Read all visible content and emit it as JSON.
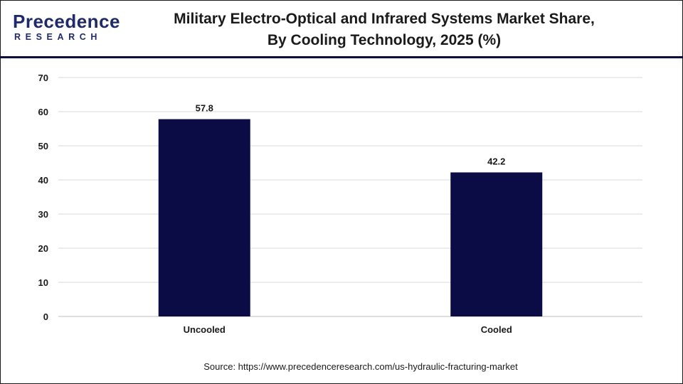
{
  "header": {
    "logo_main": "Precedence",
    "logo_sub": "RESEARCH",
    "title_line1": "Military Electro-Optical and Infrared Systems Market Share,",
    "title_line2": "By Cooling Technology, 2025 (%)"
  },
  "source": "Source: https://www.precedenceresearch.com/us-hydraulic-fracturing-market",
  "colors": {
    "bar": "#0b0b45",
    "grid": "#d9d9d9",
    "brand": "#1f2a6b"
  },
  "chart_data": {
    "type": "bar",
    "categories": [
      "Uncooled",
      "Cooled"
    ],
    "values": [
      57.8,
      42.2
    ],
    "data_labels": [
      "57.8",
      "42.2"
    ],
    "yticks": [
      0,
      10,
      20,
      30,
      40,
      50,
      60,
      70
    ],
    "ylim": [
      0,
      70
    ],
    "grid": true,
    "legend": "none"
  }
}
